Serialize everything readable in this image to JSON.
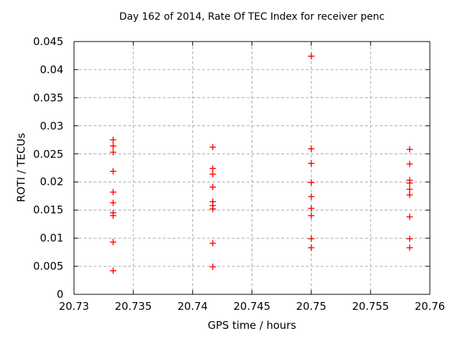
{
  "chart_data": {
    "type": "scatter",
    "title": "Day 162 of 2014, Rate Of TEC Index for receiver penc",
    "xlabel": "GPS time / hours",
    "ylabel": "ROTI / TECUs",
    "xlim": [
      20.73,
      20.76
    ],
    "ylim": [
      0,
      0.045
    ],
    "xticks": {
      "values": [
        20.73,
        20.735,
        20.74,
        20.745,
        20.75,
        20.755,
        20.76
      ],
      "labels": [
        "20.73",
        "20.735",
        "20.74",
        "20.745",
        "20.75",
        "20.755",
        "20.76"
      ]
    },
    "yticks": {
      "values": [
        0,
        0.005,
        0.01,
        0.015,
        0.02,
        0.025,
        0.03,
        0.035,
        0.04,
        0.045
      ],
      "labels": [
        "0",
        "0.005",
        "0.01",
        "0.015",
        "0.02",
        "0.025",
        "0.03",
        "0.035",
        "0.04",
        "0.045"
      ]
    },
    "grid": true,
    "legend_position": "none",
    "marker": "plus",
    "marker_color": "#ff0000",
    "grid_color": "#aaaaaa",
    "axis_color": "#000000",
    "background": "#ffffff",
    "series": [
      {
        "name": "ROTI",
        "points": [
          [
            20.7333,
            0.0275
          ],
          [
            20.7333,
            0.0264
          ],
          [
            20.7333,
            0.0253
          ],
          [
            20.7333,
            0.0219
          ],
          [
            20.7333,
            0.0182
          ],
          [
            20.7333,
            0.0163
          ],
          [
            20.7333,
            0.0145
          ],
          [
            20.7333,
            0.014
          ],
          [
            20.7333,
            0.0093
          ],
          [
            20.7333,
            0.0042
          ],
          [
            20.7417,
            0.0262
          ],
          [
            20.7417,
            0.0224
          ],
          [
            20.7417,
            0.0214
          ],
          [
            20.7417,
            0.0191
          ],
          [
            20.7417,
            0.0165
          ],
          [
            20.7417,
            0.0158
          ],
          [
            20.7417,
            0.0152
          ],
          [
            20.7417,
            0.0091
          ],
          [
            20.7417,
            0.0049
          ],
          [
            20.75,
            0.0424
          ],
          [
            20.75,
            0.0259
          ],
          [
            20.75,
            0.0233
          ],
          [
            20.75,
            0.0199
          ],
          [
            20.75,
            0.0174
          ],
          [
            20.75,
            0.0153
          ],
          [
            20.75,
            0.014
          ],
          [
            20.75,
            0.0099
          ],
          [
            20.75,
            0.0083
          ],
          [
            20.7583,
            0.0258
          ],
          [
            20.7583,
            0.0232
          ],
          [
            20.7583,
            0.0203
          ],
          [
            20.7583,
            0.0198
          ],
          [
            20.7583,
            0.0187
          ],
          [
            20.7583,
            0.0177
          ],
          [
            20.7583,
            0.0138
          ],
          [
            20.7583,
            0.0099
          ],
          [
            20.7583,
            0.0083
          ]
        ]
      }
    ]
  }
}
